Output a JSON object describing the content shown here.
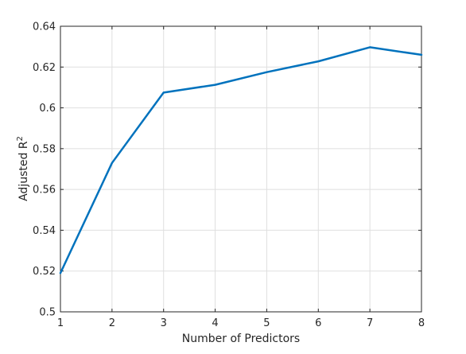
{
  "chart_data": {
    "type": "line",
    "title": "",
    "xlabel": "Number of Predictors",
    "ylabel": "Adjusted R",
    "ylabel_superscript": "2",
    "x": [
      1,
      2,
      3,
      4,
      5,
      6,
      7,
      8
    ],
    "series": [
      {
        "values": [
          0.519,
          0.573,
          0.6075,
          0.6113,
          0.6175,
          0.6228,
          0.6297,
          0.626
        ],
        "color": "#0072BD"
      }
    ],
    "xlim": [
      1,
      8
    ],
    "ylim": [
      0.5,
      0.64
    ],
    "xticks": [
      "1",
      "2",
      "3",
      "4",
      "5",
      "6",
      "7",
      "8"
    ],
    "yticks": [
      "0.5",
      "0.52",
      "0.54",
      "0.56",
      "0.58",
      "0.6",
      "0.62",
      "0.64"
    ],
    "grid": true,
    "legend": "none"
  }
}
